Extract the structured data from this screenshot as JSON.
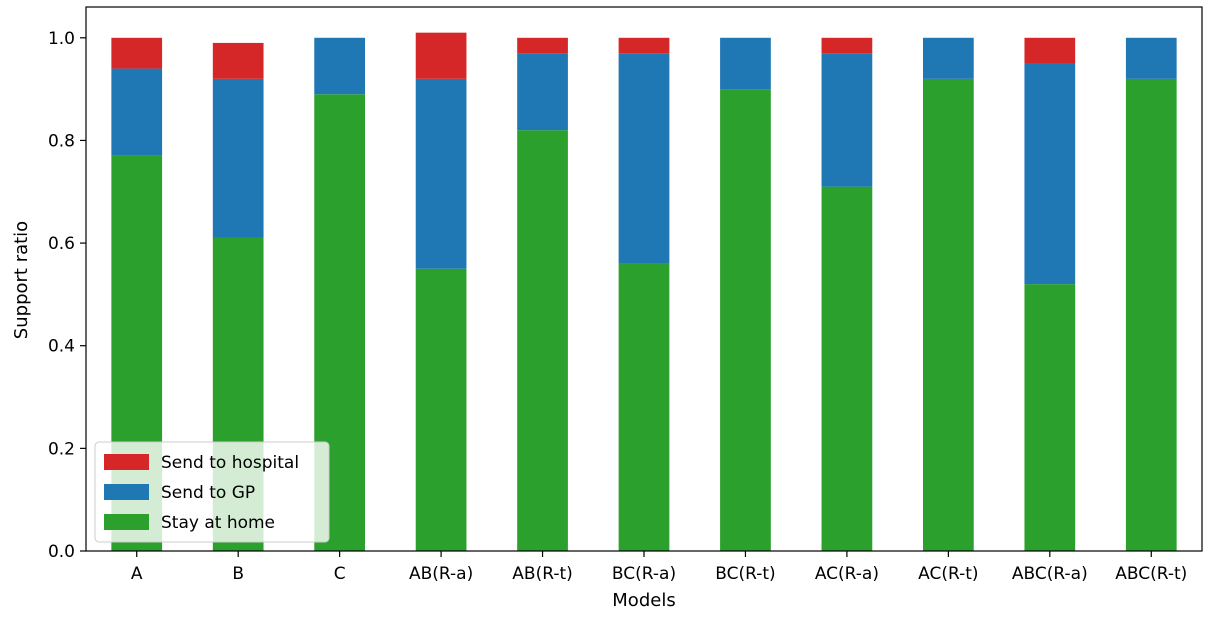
{
  "chart_data": {
    "type": "bar",
    "stacked": true,
    "categories": [
      "A",
      "B",
      "C",
      "AB(R-a)",
      "AB(R-t)",
      "BC(R-a)",
      "BC(R-t)",
      "AC(R-a)",
      "AC(R-t)",
      "ABC(R-a)",
      "ABC(R-t)"
    ],
    "series": [
      {
        "name": "Stay at home",
        "color": "#2ca02c",
        "values": [
          0.77,
          0.61,
          0.89,
          0.55,
          0.82,
          0.56,
          0.9,
          0.71,
          0.92,
          0.52,
          0.92
        ]
      },
      {
        "name": "Send to GP",
        "color": "#1f77b4",
        "values": [
          0.17,
          0.31,
          0.11,
          0.37,
          0.15,
          0.41,
          0.1,
          0.26,
          0.08,
          0.43,
          0.08
        ]
      },
      {
        "name": "Send to hospital",
        "color": "#d62728",
        "values": [
          0.06,
          0.07,
          0.0,
          0.09,
          0.03,
          0.03,
          0.0,
          0.03,
          0.0,
          0.05,
          0.0
        ]
      }
    ],
    "xlabel": "Models",
    "ylabel": "Support ratio",
    "ylim": [
      0,
      1.06
    ],
    "yticks": [
      "0.0",
      "0.2",
      "0.4",
      "0.6",
      "0.8",
      "1.0"
    ],
    "grid": false,
    "legend": {
      "placement": "lower-left",
      "order": [
        "Send to hospital",
        "Send to GP",
        "Stay at home"
      ]
    }
  }
}
